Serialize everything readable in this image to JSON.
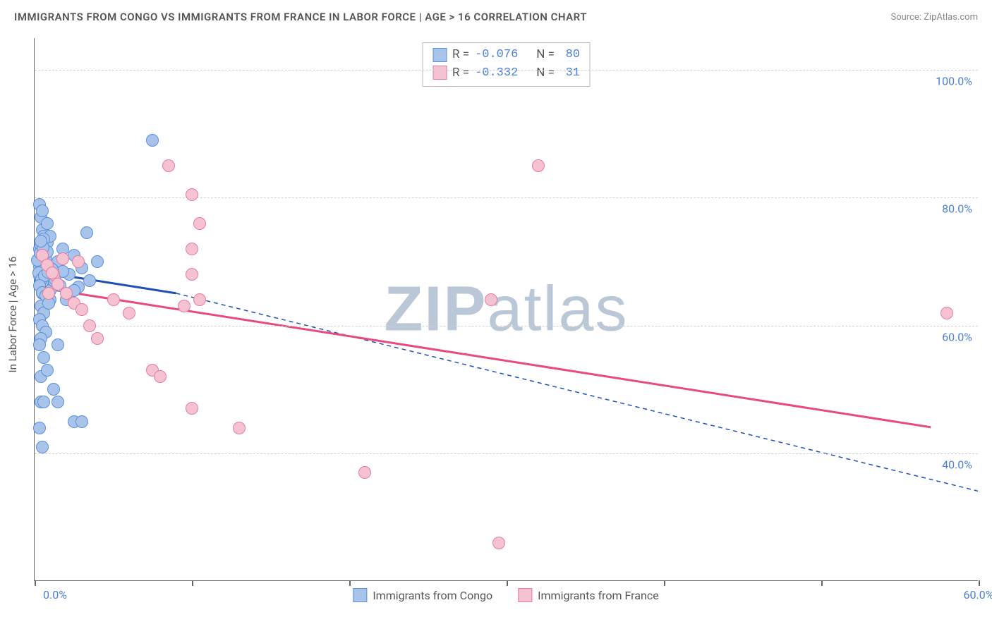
{
  "title": "IMMIGRANTS FROM CONGO VS IMMIGRANTS FROM FRANCE IN LABOR FORCE | AGE > 16 CORRELATION CHART",
  "source": "Source: ZipAtlas.com",
  "ylabel": "In Labor Force | Age > 16",
  "watermark_bold": "ZIP",
  "watermark_light": "atlas",
  "chart": {
    "type": "scatter-correlation",
    "background": "#ffffff",
    "grid_color": "#d0d0d0",
    "axis_color": "#666666",
    "xlim": [
      0,
      60
    ],
    "ylim": [
      20,
      105
    ],
    "ytick_values": [
      40,
      60,
      80,
      100
    ],
    "ytick_labels": [
      "40.0%",
      "60.0%",
      "80.0%",
      "100.0%"
    ],
    "xtick_values": [
      0,
      10,
      20,
      30,
      40,
      50,
      60
    ],
    "xtick_first_label": "0.0%",
    "xtick_last_label": "60.0%",
    "series": [
      {
        "name": "Immigrants from Congo",
        "fill": "#a8c4ea",
        "stroke": "#5a8fd8",
        "line_color": "#1f4fb0",
        "R": "-0.076",
        "N": "80",
        "points": [
          [
            0.3,
            79
          ],
          [
            0.4,
            77
          ],
          [
            0.5,
            75
          ],
          [
            0.6,
            74
          ],
          [
            0.8,
            73
          ],
          [
            0.3,
            72
          ],
          [
            0.5,
            71
          ],
          [
            0.7,
            70.5
          ],
          [
            0.4,
            70
          ],
          [
            0.6,
            69.5
          ],
          [
            0.8,
            69
          ],
          [
            0.3,
            68.5
          ],
          [
            0.5,
            68
          ],
          [
            0.7,
            67.5
          ],
          [
            0.4,
            67
          ],
          [
            0.9,
            66.5
          ],
          [
            0.6,
            66
          ],
          [
            1.0,
            65.5
          ],
          [
            0.5,
            65
          ],
          [
            1.2,
            67
          ],
          [
            1.8,
            72
          ],
          [
            2.2,
            68
          ],
          [
            2.5,
            71
          ],
          [
            2.8,
            66
          ],
          [
            3.0,
            69
          ],
          [
            0.5,
            78
          ],
          [
            0.8,
            76
          ],
          [
            1.0,
            74
          ],
          [
            1.5,
            70
          ],
          [
            7.5,
            89
          ],
          [
            3.3,
            74.5
          ],
          [
            0.4,
            63
          ],
          [
            0.6,
            62
          ],
          [
            0.3,
            61
          ],
          [
            0.5,
            60
          ],
          [
            0.7,
            59
          ],
          [
            0.4,
            58
          ],
          [
            0.3,
            57
          ],
          [
            0.6,
            55
          ],
          [
            1.5,
            57
          ],
          [
            2.5,
            45
          ],
          [
            3.0,
            45
          ],
          [
            0.3,
            44
          ],
          [
            0.5,
            41
          ],
          [
            0.4,
            48
          ],
          [
            0.6,
            48
          ],
          [
            1.5,
            48
          ],
          [
            1.2,
            50
          ],
          [
            0.4,
            52
          ],
          [
            0.8,
            53
          ],
          [
            1.0,
            64
          ],
          [
            2.0,
            64
          ],
          [
            2.5,
            65.5
          ],
          [
            1.8,
            68.5
          ],
          [
            3.5,
            67
          ],
          [
            4.0,
            70
          ],
          [
            0.3,
            69.2
          ],
          [
            0.4,
            72.5
          ],
          [
            0.6,
            73.5
          ],
          [
            0.8,
            71.5
          ],
          [
            1.0,
            69
          ],
          [
            1.3,
            67.2
          ],
          [
            1.6,
            66.2
          ],
          [
            0.5,
            66.8
          ],
          [
            0.3,
            67.8
          ],
          [
            0.4,
            68.7
          ],
          [
            0.6,
            69.8
          ],
          [
            0.2,
            70.2
          ],
          [
            0.35,
            71.3
          ],
          [
            0.55,
            72.2
          ],
          [
            0.4,
            73.2
          ],
          [
            0.25,
            68.2
          ],
          [
            0.45,
            67.2
          ],
          [
            0.65,
            67.8
          ],
          [
            0.85,
            68.3
          ],
          [
            1.1,
            68.8
          ],
          [
            0.3,
            66.2
          ],
          [
            0.5,
            65.2
          ],
          [
            0.7,
            64.7
          ],
          [
            0.9,
            63.5
          ]
        ],
        "trend_solid": {
          "x1": 0,
          "y1": 68.5,
          "x2": 9,
          "y2": 65
        },
        "trend_dashed": {
          "x1": 9,
          "y1": 65,
          "x2": 60,
          "y2": 34
        }
      },
      {
        "name": "Immigrants from France",
        "fill": "#f5c2d2",
        "stroke": "#e77aa0",
        "line_color": "#e84a7f",
        "R": "-0.332",
        "N": "31",
        "points": [
          [
            0.5,
            71
          ],
          [
            0.8,
            69.5
          ],
          [
            1.2,
            68
          ],
          [
            1.5,
            66.5
          ],
          [
            2.0,
            65
          ],
          [
            2.5,
            63.5
          ],
          [
            8.5,
            85
          ],
          [
            10,
            80.5
          ],
          [
            10.5,
            76
          ],
          [
            10,
            72
          ],
          [
            10,
            68
          ],
          [
            10.5,
            64
          ],
          [
            7.5,
            53
          ],
          [
            8,
            52
          ],
          [
            10,
            47
          ],
          [
            13,
            44
          ],
          [
            29,
            64
          ],
          [
            32,
            85
          ],
          [
            58,
            62
          ],
          [
            2.8,
            70
          ],
          [
            3.0,
            62.5
          ],
          [
            3.5,
            60
          ],
          [
            4.0,
            58
          ],
          [
            5.0,
            64
          ],
          [
            6.0,
            62
          ],
          [
            9.5,
            63
          ],
          [
            1.8,
            70.5
          ],
          [
            0.9,
            65
          ],
          [
            21,
            37
          ],
          [
            29.5,
            26
          ],
          [
            1.1,
            68.2
          ]
        ],
        "trend_solid": {
          "x1": 0,
          "y1": 66,
          "x2": 57,
          "y2": 44
        },
        "trend_dashed": null
      }
    ],
    "stats_labels": {
      "R": "R =",
      "N": "N ="
    }
  },
  "legend": {
    "items": [
      "Immigrants from Congo",
      "Immigrants from France"
    ]
  }
}
